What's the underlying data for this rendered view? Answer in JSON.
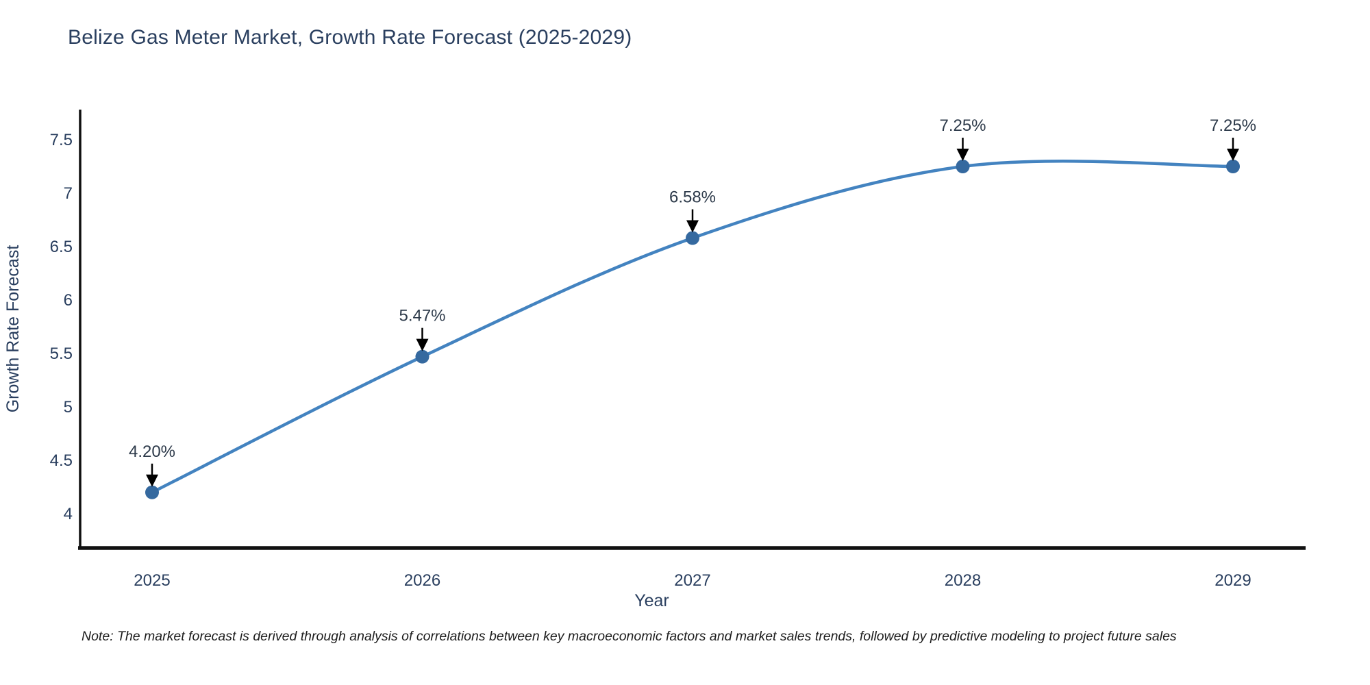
{
  "header": {
    "title": "Belize Gas Meter Market, Growth Rate Forecast (2025-2029)"
  },
  "chart_data": {
    "type": "line",
    "title": "Belize Gas Meter Market, Growth Rate Forecast (2025-2029)",
    "categories": [
      "2025",
      "2026",
      "2027",
      "2028",
      "2029"
    ],
    "series": [
      {
        "name": "Growth Rate Forecast",
        "values": [
          4.2,
          5.47,
          6.58,
          7.25,
          7.25
        ]
      }
    ],
    "point_labels": [
      "4.20%",
      "5.47%",
      "6.58%",
      "7.25%",
      "7.25%"
    ],
    "xlabel": "Year",
    "ylabel": "Growth Rate Forecast",
    "yticks": [
      4,
      4.5,
      5,
      5.5,
      6,
      6.5,
      7,
      7.5
    ],
    "ylim": [
      3.68,
      7.78
    ],
    "grid": false,
    "legend_position": "none",
    "line_shape": "spline",
    "annotations_have_arrows": true,
    "colors": {
      "line": "#4383c0",
      "marker": "#35699f",
      "axis": "#111111",
      "text": "#2a3f5f",
      "annotation_text": "#2d3a4a",
      "arrow": "#000000"
    }
  },
  "footer": {
    "note": "Note: The market forecast is derived through analysis of correlations between key macroeconomic factors and market sales trends, followed by predictive modeling to project future sales"
  }
}
